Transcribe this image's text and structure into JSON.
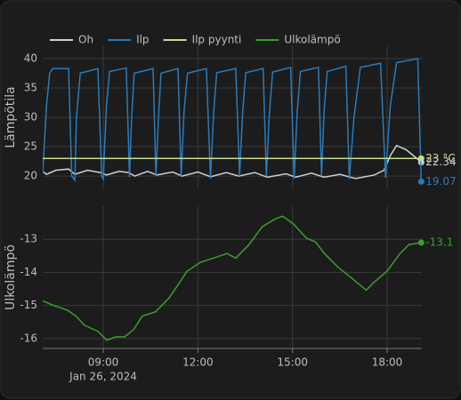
{
  "chart_data": [
    {
      "type": "line",
      "y_label": "Lämpötila",
      "ylim": [
        17.9,
        42.1
      ],
      "yticks": [
        20,
        25,
        30,
        35,
        40
      ],
      "grid": true,
      "series": [
        {
          "name": "Oh",
          "color": "#c9d1dc",
          "last_label": "22.34",
          "x": [
            7.08,
            7.2,
            7.5,
            7.9,
            8.1,
            8.5,
            8.9,
            9.1,
            9.5,
            9.8,
            10.0,
            10.4,
            10.7,
            11.2,
            11.5,
            12.0,
            12.4,
            12.9,
            13.3,
            13.8,
            14.2,
            14.8,
            15.1,
            15.6,
            16.0,
            16.5,
            17.0,
            17.6,
            17.9,
            18.1,
            18.3,
            18.6,
            18.9,
            19.08
          ],
          "values": [
            20.8,
            20.3,
            21,
            21.2,
            20.3,
            21,
            20.6,
            20.2,
            20.8,
            20.6,
            20,
            20.8,
            20.2,
            20.7,
            20,
            20.7,
            19.9,
            20.6,
            20,
            20.6,
            19.8,
            20.4,
            19.8,
            20.5,
            19.8,
            20.3,
            19.6,
            20.2,
            21,
            23.5,
            25.2,
            24.5,
            23.2,
            22.34
          ]
        },
        {
          "name": "Ilp",
          "color": "#2b7bb9",
          "last_label": "19.07",
          "x": [
            7.08,
            7.2,
            7.3,
            7.4,
            7.9,
            8.0,
            8.1,
            8.15,
            8.27,
            8.83,
            8.95,
            9.0,
            9.1,
            9.2,
            9.73,
            9.83,
            9.9,
            9.98,
            10.58,
            10.67,
            10.75,
            10.83,
            11.37,
            11.47,
            11.56,
            11.67,
            12.27,
            12.4,
            12.5,
            12.6,
            13.2,
            13.32,
            13.42,
            13.52,
            14.07,
            14.17,
            14.27,
            14.37,
            14.94,
            15.05,
            15.15,
            15.25,
            15.82,
            15.92,
            16.0,
            16.1,
            16.69,
            16.8,
            16.95,
            17.15,
            17.79,
            17.95,
            18.1,
            18.3,
            18.97,
            19.08
          ],
          "values": [
            20.5,
            32,
            37.5,
            38.3,
            38.3,
            20,
            19.3,
            30,
            37.5,
            38.3,
            20,
            19.5,
            32,
            37.8,
            38.4,
            19.8,
            30,
            37.5,
            38.3,
            20,
            30,
            37.5,
            38.3,
            20,
            31,
            37.5,
            38.3,
            19.5,
            31,
            37.6,
            38.3,
            20,
            31,
            37.6,
            38.3,
            20,
            31,
            37.7,
            38.5,
            19.5,
            31,
            37.8,
            38.5,
            20,
            31,
            37.8,
            38.7,
            19.5,
            30,
            38.5,
            39.2,
            19.7,
            32,
            39.3,
            40,
            19.07
          ]
        },
        {
          "name": "Ilp pyynti",
          "color": "#c6dc8c",
          "last_label": "23 °C",
          "x": [
            7.08,
            19.08
          ],
          "values": [
            23,
            23
          ]
        }
      ]
    },
    {
      "type": "line",
      "y_label": "Ulkolämpö",
      "ylim": [
        -16.3,
        -12
      ],
      "yticks": [
        -16,
        -15,
        -14,
        -13
      ],
      "grid": true,
      "xlim": [
        7.08,
        19.1
      ],
      "xticks": [
        {
          "value": 9,
          "label": "09:00"
        },
        {
          "value": 12,
          "label": "12:00"
        },
        {
          "value": 15,
          "label": "15:00"
        },
        {
          "value": 18,
          "label": "18:00"
        }
      ],
      "x_date_label": "Jan 26, 2024",
      "series": [
        {
          "name": "Ulkolämpö",
          "color": "#3c9e30",
          "last_label": "-13.1",
          "x": [
            7.08,
            7.42,
            7.85,
            8.13,
            8.41,
            8.83,
            9.11,
            9.39,
            9.68,
            9.96,
            10.24,
            10.66,
            11.08,
            11.37,
            11.65,
            12.07,
            12.49,
            12.92,
            13.2,
            13.62,
            14.04,
            14.46,
            14.69,
            15.03,
            15.45,
            15.73,
            16.01,
            16.44,
            16.86,
            17.34,
            17.56,
            17.99,
            18.41,
            18.69,
            19.08
          ],
          "values": [
            -14.86,
            -15.0,
            -15.14,
            -15.32,
            -15.6,
            -15.78,
            -16.05,
            -15.95,
            -15.95,
            -15.73,
            -15.32,
            -15.19,
            -14.78,
            -14.38,
            -13.97,
            -13.7,
            -13.57,
            -13.43,
            -13.57,
            -13.16,
            -12.62,
            -12.38,
            -12.3,
            -12.54,
            -12.97,
            -13.08,
            -13.43,
            -13.84,
            -14.16,
            -14.54,
            -14.32,
            -13.97,
            -13.43,
            -13.16,
            -13.1
          ]
        }
      ]
    }
  ]
}
